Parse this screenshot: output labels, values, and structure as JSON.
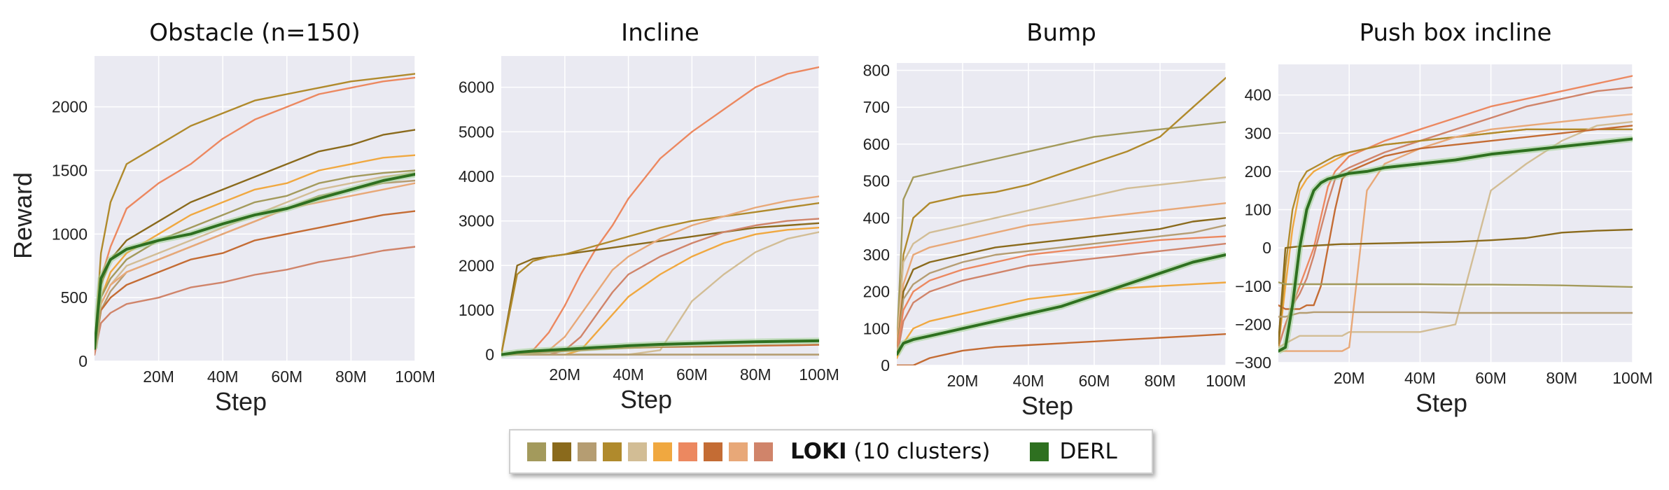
{
  "legend": {
    "loki_bold": "LOKI",
    "loki_rest": "(10 clusters)",
    "derl_label": "DERL",
    "loki_colors": [
      "#a39a5c",
      "#8a6a1c",
      "#b59d72",
      "#b08a2c",
      "#d2bd95",
      "#f0a840",
      "#ec8860",
      "#c46c34",
      "#e8a878",
      "#d0846a"
    ],
    "derl_color": "#2e7020"
  },
  "chart_data": [
    {
      "type": "line",
      "title": "Obstacle (n=150)",
      "xlabel": "Step",
      "ylabel": "Reward",
      "xlim": [
        0,
        100
      ],
      "ylim": [
        0,
        2400
      ],
      "xticks": [
        20,
        40,
        60,
        80,
        100
      ],
      "xtick_labels": [
        "20M",
        "40M",
        "60M",
        "80M",
        "100M"
      ],
      "yticks": [
        0,
        500,
        1000,
        1500,
        2000
      ],
      "ytick_labels": [
        "0",
        "500",
        "1000",
        "1500",
        "2000"
      ],
      "grid": true,
      "x": [
        0,
        2,
        5,
        10,
        20,
        30,
        40,
        50,
        60,
        70,
        80,
        90,
        100
      ],
      "series": [
        {
          "color": "#b08a2c",
          "values": [
            100,
            850,
            1250,
            1550,
            1700,
            1850,
            1950,
            2050,
            2100,
            2150,
            2200,
            2230,
            2260
          ]
        },
        {
          "color": "#ec8860",
          "values": [
            100,
            650,
            900,
            1200,
            1400,
            1550,
            1750,
            1900,
            2000,
            2100,
            2150,
            2200,
            2230
          ]
        },
        {
          "color": "#8a6a1c",
          "values": [
            80,
            600,
            800,
            950,
            1100,
            1250,
            1350,
            1450,
            1550,
            1650,
            1700,
            1780,
            1820
          ]
        },
        {
          "color": "#f0a840",
          "values": [
            80,
            500,
            700,
            850,
            1000,
            1150,
            1250,
            1350,
            1400,
            1500,
            1550,
            1600,
            1620
          ]
        },
        {
          "color": "#a39a5c",
          "values": [
            60,
            500,
            650,
            800,
            950,
            1050,
            1150,
            1250,
            1300,
            1400,
            1450,
            1480,
            1500
          ]
        },
        {
          "color": "#d2bd95",
          "values": [
            60,
            450,
            600,
            750,
            850,
            950,
            1050,
            1150,
            1250,
            1350,
            1400,
            1450,
            1480
          ]
        },
        {
          "color": "#b59d72",
          "values": [
            60,
            400,
            550,
            700,
            800,
            900,
            1000,
            1100,
            1200,
            1300,
            1350,
            1400,
            1420
          ]
        },
        {
          "color": "#e8a878",
          "values": [
            60,
            450,
            600,
            700,
            800,
            900,
            1000,
            1100,
            1200,
            1250,
            1300,
            1350,
            1400
          ]
        },
        {
          "color": "#c46c34",
          "values": [
            60,
            400,
            500,
            600,
            700,
            800,
            850,
            950,
            1000,
            1050,
            1100,
            1150,
            1180
          ]
        },
        {
          "color": "#d0846a",
          "values": [
            50,
            300,
            380,
            450,
            500,
            580,
            620,
            680,
            720,
            780,
            820,
            870,
            900
          ]
        },
        {
          "color": "#2e7020",
          "name": "DERL",
          "values": [
            100,
            650,
            800,
            880,
            950,
            1000,
            1080,
            1150,
            1200,
            1280,
            1350,
            1420,
            1470
          ]
        }
      ]
    },
    {
      "type": "line",
      "title": "Incline",
      "xlabel": "Step",
      "ylabel": "",
      "xlim": [
        0,
        100
      ],
      "ylim": [
        -100,
        6700
      ],
      "xticks": [
        20,
        40,
        60,
        80,
        100
      ],
      "xtick_labels": [
        "20M",
        "40M",
        "60M",
        "80M",
        "100M"
      ],
      "yticks": [
        0,
        1000,
        2000,
        3000,
        4000,
        5000,
        6000
      ],
      "ytick_labels": [
        "0",
        "1000",
        "2000",
        "3000",
        "4000",
        "5000",
        "6000"
      ],
      "grid": true,
      "x": [
        0,
        5,
        10,
        15,
        20,
        25,
        30,
        35,
        40,
        50,
        60,
        70,
        80,
        90,
        100
      ],
      "series": [
        {
          "color": "#ec8860",
          "values": [
            0,
            0,
            100,
            500,
            1100,
            1800,
            2400,
            2900,
            3500,
            4400,
            5000,
            5500,
            6000,
            6300,
            6450
          ]
        },
        {
          "color": "#8a6a1c",
          "values": [
            0,
            2000,
            2150,
            2200,
            2250,
            2300,
            2350,
            2400,
            2450,
            2550,
            2650,
            2750,
            2850,
            2900,
            2950
          ]
        },
        {
          "color": "#b08a2c",
          "values": [
            0,
            1800,
            2100,
            2200,
            2250,
            2350,
            2450,
            2550,
            2650,
            2850,
            3000,
            3100,
            3200,
            3300,
            3400
          ]
        },
        {
          "color": "#e8a878",
          "values": [
            0,
            0,
            0,
            100,
            400,
            900,
            1400,
            1900,
            2200,
            2600,
            2900,
            3100,
            3300,
            3450,
            3550
          ]
        },
        {
          "color": "#d0846a",
          "values": [
            0,
            0,
            0,
            0,
            100,
            400,
            900,
            1400,
            1800,
            2200,
            2500,
            2750,
            2900,
            3000,
            3050
          ]
        },
        {
          "color": "#f0a840",
          "values": [
            0,
            0,
            0,
            0,
            0,
            100,
            500,
            900,
            1300,
            1800,
            2200,
            2500,
            2700,
            2800,
            2850
          ]
        },
        {
          "color": "#d2bd95",
          "values": [
            0,
            0,
            0,
            0,
            0,
            0,
            0,
            0,
            0,
            100,
            1200,
            1800,
            2300,
            2600,
            2750
          ]
        },
        {
          "color": "#a39a5c",
          "values": [
            0,
            0,
            0,
            0,
            0,
            0,
            0,
            0,
            0,
            0,
            0,
            0,
            0,
            0,
            0
          ]
        },
        {
          "color": "#b59d72",
          "values": [
            0,
            0,
            0,
            0,
            0,
            0,
            0,
            0,
            0,
            0,
            0,
            0,
            0,
            0,
            0
          ]
        },
        {
          "color": "#c46c34",
          "values": [
            0,
            20,
            40,
            60,
            80,
            100,
            120,
            140,
            150,
            170,
            180,
            190,
            200,
            210,
            220
          ]
        },
        {
          "color": "#2e7020",
          "name": "DERL",
          "values": [
            0,
            50,
            80,
            100,
            120,
            140,
            160,
            180,
            200,
            230,
            250,
            270,
            290,
            300,
            310
          ]
        }
      ]
    },
    {
      "type": "line",
      "title": "Bump",
      "xlabel": "Step",
      "ylabel": "",
      "xlim": [
        0,
        100
      ],
      "ylim": [
        0,
        820
      ],
      "xticks": [
        20,
        40,
        60,
        80,
        100
      ],
      "xtick_labels": [
        "20M",
        "40M",
        "60M",
        "80M",
        "100M"
      ],
      "yticks": [
        0,
        100,
        200,
        300,
        400,
        500,
        600,
        700,
        800
      ],
      "ytick_labels": [
        "0",
        "100",
        "200",
        "300",
        "400",
        "500",
        "600",
        "700",
        "800"
      ],
      "grid": true,
      "x": [
        0,
        2,
        5,
        10,
        20,
        30,
        40,
        50,
        60,
        70,
        80,
        90,
        100
      ],
      "series": [
        {
          "color": "#a39a5c",
          "values": [
            50,
            450,
            510,
            520,
            540,
            560,
            580,
            600,
            620,
            630,
            640,
            650,
            660
          ]
        },
        {
          "color": "#b08a2c",
          "values": [
            50,
            300,
            400,
            440,
            460,
            470,
            490,
            520,
            550,
            580,
            620,
            700,
            780
          ]
        },
        {
          "color": "#d2bd95",
          "values": [
            50,
            280,
            330,
            360,
            380,
            400,
            420,
            440,
            460,
            480,
            490,
            500,
            510
          ]
        },
        {
          "color": "#e8a878",
          "values": [
            50,
            220,
            300,
            320,
            340,
            360,
            380,
            390,
            400,
            410,
            420,
            430,
            440
          ]
        },
        {
          "color": "#8a6a1c",
          "values": [
            30,
            200,
            260,
            280,
            300,
            320,
            330,
            340,
            350,
            360,
            370,
            390,
            400
          ]
        },
        {
          "color": "#b59d72",
          "values": [
            30,
            180,
            220,
            250,
            280,
            300,
            310,
            320,
            330,
            340,
            350,
            360,
            380
          ]
        },
        {
          "color": "#ec8860",
          "values": [
            30,
            150,
            200,
            230,
            260,
            280,
            300,
            310,
            320,
            330,
            340,
            345,
            350
          ]
        },
        {
          "color": "#d0846a",
          "values": [
            20,
            120,
            170,
            200,
            230,
            250,
            270,
            280,
            290,
            300,
            310,
            320,
            330
          ]
        },
        {
          "color": "#f0a840",
          "values": [
            20,
            60,
            100,
            120,
            140,
            160,
            180,
            190,
            200,
            210,
            215,
            220,
            225
          ]
        },
        {
          "color": "#c46c34",
          "values": [
            0,
            0,
            0,
            20,
            40,
            50,
            55,
            60,
            65,
            70,
            75,
            80,
            85
          ]
        },
        {
          "color": "#2e7020",
          "name": "DERL",
          "values": [
            30,
            60,
            70,
            80,
            100,
            120,
            140,
            160,
            190,
            220,
            250,
            280,
            300
          ]
        }
      ]
    },
    {
      "type": "line",
      "title": "Push box incline",
      "xlabel": "Step",
      "ylabel": "",
      "xlim": [
        0,
        100
      ],
      "ylim": [
        -300,
        480
      ],
      "xticks": [
        20,
        40,
        60,
        80,
        100
      ],
      "xtick_labels": [
        "20M",
        "40M",
        "60M",
        "80M",
        "100M"
      ],
      "yticks": [
        -300,
        -200,
        -100,
        0,
        100,
        200,
        300,
        400
      ],
      "ytick_labels": [
        "−300",
        "−200",
        "−100",
        "0",
        "100",
        "200",
        "300",
        "400"
      ],
      "grid": true,
      "x": [
        0,
        2,
        4,
        6,
        8,
        10,
        12,
        14,
        16,
        18,
        20,
        25,
        30,
        40,
        50,
        60,
        70,
        80,
        90,
        100
      ],
      "series": [
        {
          "color": "#ec8860",
          "values": [
            -260,
            -200,
            -150,
            -100,
            -50,
            0,
            80,
            160,
            200,
            220,
            240,
            260,
            280,
            310,
            340,
            370,
            390,
            410,
            430,
            450
          ]
        },
        {
          "color": "#d0846a",
          "values": [
            -260,
            -200,
            -150,
            -120,
            -80,
            -20,
            50,
            120,
            180,
            200,
            210,
            230,
            250,
            280,
            310,
            340,
            370,
            390,
            410,
            420
          ]
        },
        {
          "color": "#f0a840",
          "values": [
            -260,
            -100,
            50,
            150,
            180,
            200,
            210,
            220,
            230,
            240,
            250,
            260,
            270,
            280,
            290,
            300,
            310,
            310,
            310,
            310
          ]
        },
        {
          "color": "#b08a2c",
          "values": [
            -260,
            -50,
            100,
            170,
            200,
            210,
            220,
            230,
            240,
            245,
            250,
            260,
            270,
            280,
            290,
            300,
            310,
            310,
            310,
            310
          ]
        },
        {
          "color": "#d2bd95",
          "values": [
            -260,
            -250,
            -240,
            -230,
            -230,
            -230,
            -230,
            -230,
            -230,
            -230,
            -220,
            -220,
            -220,
            -220,
            -200,
            150,
            220,
            280,
            320,
            330
          ]
        },
        {
          "color": "#e8a878",
          "values": [
            -270,
            -270,
            -270,
            -270,
            -270,
            -270,
            -270,
            -270,
            -270,
            -270,
            -260,
            150,
            220,
            260,
            290,
            310,
            320,
            330,
            340,
            350
          ]
        },
        {
          "color": "#c46c34",
          "values": [
            -150,
            -160,
            -160,
            -160,
            -150,
            -150,
            -100,
            0,
            100,
            180,
            200,
            220,
            240,
            260,
            270,
            280,
            290,
            300,
            310,
            320
          ]
        },
        {
          "color": "#8a6a1c",
          "values": [
            -250,
            0,
            2,
            4,
            5,
            6,
            7,
            8,
            9,
            10,
            10,
            11,
            12,
            14,
            16,
            20,
            26,
            40,
            45,
            48
          ]
        },
        {
          "color": "#a39a5c",
          "values": [
            -90,
            -95,
            -95,
            -95,
            -95,
            -95,
            -95,
            -95,
            -95,
            -95,
            -95,
            -95,
            -95,
            -95,
            -96,
            -96,
            -97,
            -98,
            -100,
            -102
          ]
        },
        {
          "color": "#b59d72",
          "values": [
            -180,
            -180,
            -175,
            -170,
            -170,
            -168,
            -168,
            -168,
            -168,
            -168,
            -168,
            -168,
            -168,
            -168,
            -170,
            -170,
            -170,
            -170,
            -170,
            -170
          ]
        },
        {
          "color": "#2e7020",
          "name": "DERL",
          "values": [
            -270,
            -260,
            -150,
            0,
            100,
            150,
            170,
            180,
            185,
            190,
            195,
            200,
            210,
            220,
            230,
            245,
            255,
            265,
            275,
            285
          ]
        }
      ]
    }
  ]
}
